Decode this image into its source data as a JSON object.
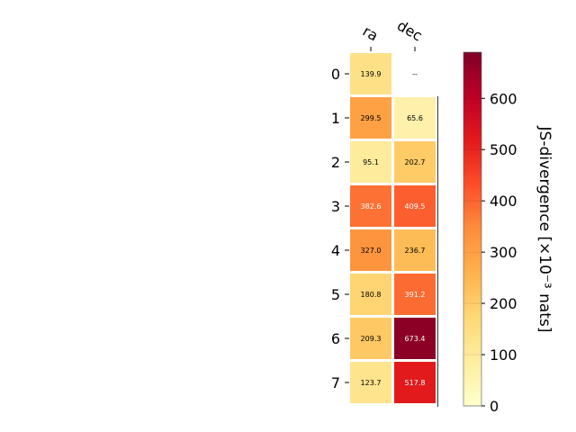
{
  "chart_data": {
    "type": "heatmap",
    "columns": [
      "ra",
      "dec"
    ],
    "rows": [
      "0",
      "1",
      "2",
      "3",
      "4",
      "5",
      "6",
      "7"
    ],
    "values": [
      [
        139.9,
        null
      ],
      [
        299.5,
        65.6
      ],
      [
        95.1,
        202.7
      ],
      [
        382.6,
        409.5
      ],
      [
        327.0,
        236.7
      ],
      [
        180.8,
        391.2
      ],
      [
        209.3,
        673.4
      ],
      [
        123.7,
        517.8
      ]
    ],
    "cell_labels": [
      [
        "139.9",
        "--"
      ],
      [
        "299.5",
        "65.6"
      ],
      [
        "95.1",
        "202.7"
      ],
      [
        "382.6",
        "409.5"
      ],
      [
        "327.0",
        "236.7"
      ],
      [
        "180.8",
        "391.2"
      ],
      [
        "209.3",
        "673.4"
      ],
      [
        "123.7",
        "517.8"
      ]
    ],
    "colorbar": {
      "label": "JS-divergence [×10⁻³ nats]",
      "range": [
        0,
        690
      ],
      "ticks": [
        "0",
        "100",
        "200",
        "300",
        "400",
        "500",
        "600"
      ],
      "colormap": "YlOrRd"
    }
  }
}
